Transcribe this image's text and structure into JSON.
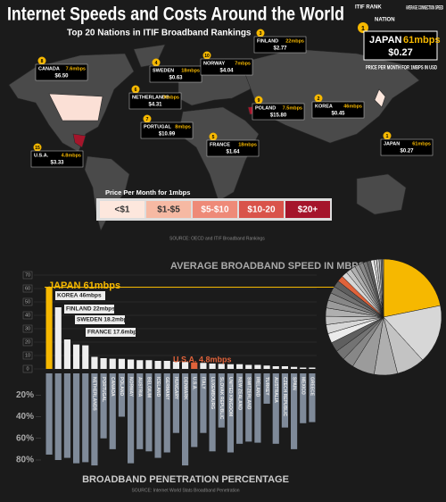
{
  "header": {
    "title": "Internet Speeds and Costs Around the World",
    "subtitle": "Top 20 Nations in ITIF Broadband Rankings",
    "key": {
      "rank_label": "ITIF RANK",
      "nation_label": "NATION",
      "speed_label": "AVERAGE CONNECTION SPEED",
      "price_label": "PRICE PER MONTH FOR 1MBPS IN USD",
      "rank": 1,
      "nation": "JAPAN",
      "speed": "61mbps",
      "price": "$0.27"
    }
  },
  "map": {
    "callouts": [
      {
        "rank": 8,
        "nation": "CANADA",
        "speed": "7.6mbps",
        "price": "$6.50"
      },
      {
        "rank": 4,
        "nation": "SWEDEN",
        "speed": "18mbps",
        "price": "$0.63"
      },
      {
        "rank": 10,
        "nation": "NORWAY",
        "speed": "7mbps",
        "price": "$4.04"
      },
      {
        "rank": 3,
        "nation": "FINLAND",
        "speed": "22mbps",
        "price": "$2.77"
      },
      {
        "rank": 6,
        "nation": "NETHERLANDS",
        "speed": "9mbps",
        "price": "$4.31"
      },
      {
        "rank": 7,
        "nation": "PORTUGAL",
        "speed": "8mbps",
        "price": "$10.99"
      },
      {
        "rank": 9,
        "nation": "POLAND",
        "speed": "7.5mbps",
        "price": "$15.80"
      },
      {
        "rank": 2,
        "nation": "KOREA",
        "speed": "46mbps",
        "price": "$0.45"
      },
      {
        "rank": 5,
        "nation": "FRANCE",
        "speed": "18mbps",
        "price": "$1.64"
      },
      {
        "rank": 15,
        "nation": "U.S.A.",
        "speed": "4.8mbps",
        "price": "$3.33"
      },
      {
        "rank": 1,
        "nation": "JAPAN",
        "speed": "61mbps",
        "price": "$0.27"
      }
    ],
    "legend": {
      "title": "Price Per Month for 1mbps",
      "items": [
        {
          "label": "<$1",
          "color": "#fde7dd"
        },
        {
          "label": "$1-$5",
          "color": "#f6b9a3"
        },
        {
          "label": "$5-$10",
          "color": "#ee8a78"
        },
        {
          "label": "$10-20",
          "color": "#d9534a"
        },
        {
          "label": "$20+",
          "color": "#a5152b"
        }
      ]
    },
    "source": "SOURCE: OECD and ITIF Broadband Rankings"
  },
  "chart_data": [
    {
      "type": "bar",
      "title": "AVERAGE BROADBAND SPEED IN MBPS",
      "categories": [
        "JAPAN",
        "KOREA",
        "FINLAND",
        "SWEDEN",
        "FRANCE",
        "NETHERLANDS",
        "PORTUGAL",
        "CANADA",
        "POLAND",
        "NORWAY",
        "AUSTRIA",
        "BELGIUM",
        "ICELAND",
        "GERMANY",
        "HUNGARY",
        "DENMARK",
        "U.S.A.",
        "ITALY",
        "LUXEMBOURG",
        "SLOVAK REPUBLIC",
        "UNITED KINGDOM",
        "NEW ZEALAND",
        "SWITZERLAND",
        "IRELAND",
        "TURKEY",
        "AUSTRALIA",
        "CZECH REPUBLIC",
        "SPAIN",
        "MEXICO",
        "GREECE"
      ],
      "values": [
        61,
        46,
        22,
        18.2,
        17.6,
        9,
        8,
        7.6,
        7.5,
        7,
        6.5,
        6.5,
        6,
        6,
        5.5,
        5.2,
        4.8,
        4.5,
        4,
        3.8,
        3.5,
        3.5,
        3,
        3,
        2.5,
        2,
        2,
        1.5,
        1,
        1
      ],
      "color": "#eeeeee",
      "highlight_colors": {
        "JAPAN": "#f6b800",
        "U.S.A.": "#e0623a"
      },
      "annotations": [
        "JAPAN 61mbps",
        "KOREA 46mbps",
        "FINLAND 22mbps",
        "SWEDEN 18.2mbps",
        "FRANCE 17.6mbps",
        "U.S.A. 4.8mbps"
      ],
      "ylim": [
        0,
        70
      ],
      "yticks": [
        0,
        10,
        20,
        30,
        40,
        50,
        60,
        70
      ],
      "grid": true
    },
    {
      "type": "bar",
      "title": "BROADBAND PENETRATION PERCENTAGE",
      "source": "SOURCE: Internet World Stats Broadband Penetration",
      "values": [
        75,
        80,
        78,
        83,
        82,
        85,
        60,
        70,
        40,
        83,
        70,
        72,
        78,
        73,
        55,
        85,
        68,
        55,
        72,
        50,
        73,
        65,
        63,
        64,
        28,
        65,
        50,
        70,
        46,
        45
      ],
      "color": "#7f8a99",
      "ylim": [
        0,
        80
      ],
      "yticks": [
        {
          "value": 20,
          "label": "20%"
        },
        {
          "value": 40,
          "label": "40%"
        },
        {
          "value": 60,
          "label": "60%"
        },
        {
          "value": 80,
          "label": "80%"
        }
      ]
    }
  ]
}
